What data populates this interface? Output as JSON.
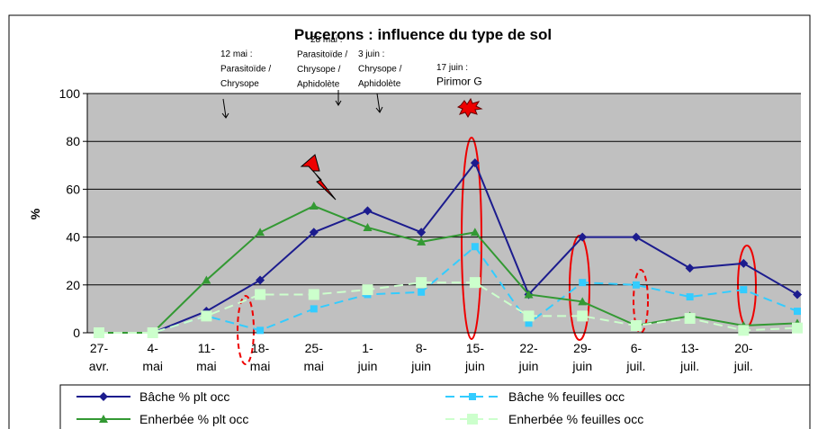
{
  "chart_data": {
    "type": "line",
    "title": "Pucerons : influence du type de sol",
    "y_label": "%",
    "categories": [
      "27-avr.",
      "4-mai",
      "11-mai",
      "18-mai",
      "25-mai",
      "1-juin",
      "8-juin",
      "15-juin",
      "22-juin",
      "29-juin",
      "6-juil.",
      "13-juil.",
      "20-juil.",
      null
    ],
    "series": [
      {
        "name": "Bâche % plt occ",
        "color": "#1c1c8e",
        "marker": "diamond",
        "dashed": false,
        "values": [
          0,
          0,
          9,
          22,
          42,
          51,
          42,
          71,
          16,
          40,
          40,
          27,
          29,
          16
        ]
      },
      {
        "name": "Bâche % feuilles occ",
        "color": "#33ccff",
        "marker": "square",
        "dashed": true,
        "values": [
          0,
          0,
          7,
          1,
          10,
          16,
          17,
          36,
          4,
          21,
          20,
          15,
          18,
          9
        ]
      },
      {
        "name": "Enherbée % plt occ",
        "color": "#339933",
        "marker": "triangle",
        "dashed": false,
        "values": [
          0,
          0,
          22,
          42,
          53,
          44,
          38,
          42,
          16,
          13,
          3,
          7,
          3,
          4
        ]
      },
      {
        "name": "Enherbée % feuilles occ",
        "color": "#ccffcc",
        "marker": "bigsquare",
        "dashed": true,
        "values": [
          0,
          0,
          7,
          16,
          16,
          18,
          21,
          21,
          7,
          7,
          3,
          6,
          1,
          2
        ]
      }
    ],
    "ylim": [
      0,
      100
    ],
    "yticks": [
      0,
      20,
      40,
      60,
      80,
      100
    ],
    "grid": true,
    "annotations": [
      {
        "lines": [
          "12 mai :",
          "Parasitoïde /",
          "Chrysope"
        ]
      },
      {
        "lines": [
          "28 mai :",
          "Parasitoïde /",
          "Chrysope /",
          "Aphidolète"
        ]
      },
      {
        "lines": [
          "3 juin :",
          "Chrysope /",
          "Aphidolète"
        ]
      },
      {
        "lines": [
          "17 juin :",
          "Pirimor G"
        ]
      }
    ]
  }
}
